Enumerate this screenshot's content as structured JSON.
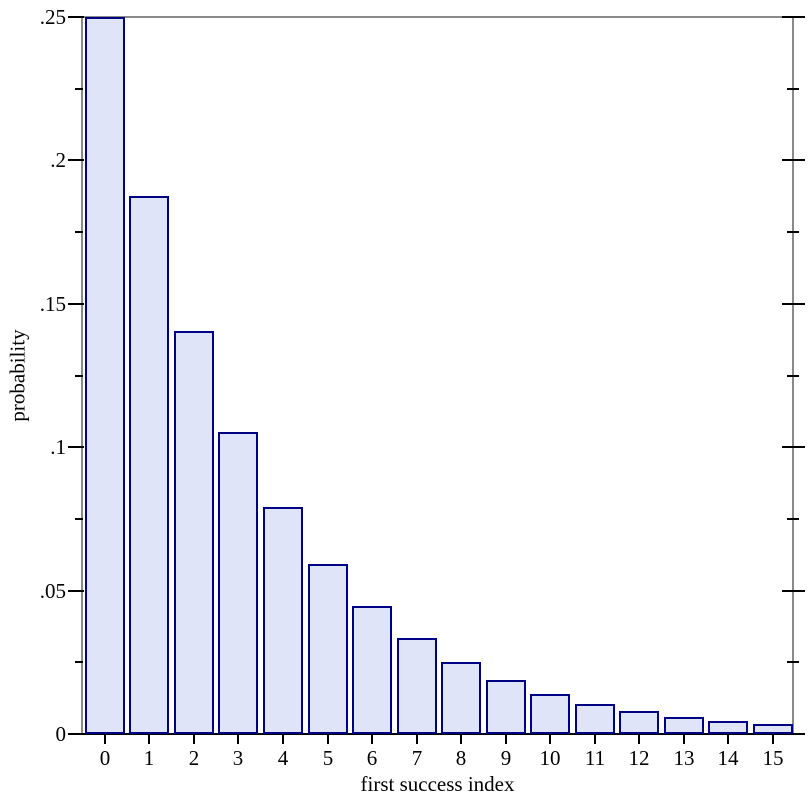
{
  "chart_data": {
    "type": "bar",
    "title": "",
    "xlabel": "first success index",
    "ylabel": "probability",
    "categories": [
      "0",
      "1",
      "2",
      "3",
      "4",
      "5",
      "6",
      "7",
      "8",
      "9",
      "10",
      "11",
      "12",
      "13",
      "14",
      "15"
    ],
    "values": [
      0.25,
      0.1875,
      0.14063,
      0.10547,
      0.0791,
      0.05933,
      0.04449,
      0.03337,
      0.02503,
      0.01877,
      0.01408,
      0.01056,
      0.00792,
      0.00594,
      0.00445,
      0.00334
    ],
    "ylim": [
      0,
      0.25
    ],
    "y_axis": {
      "major_ticks": [
        0,
        0.05,
        0.1,
        0.15,
        0.2,
        0.25
      ],
      "major_tick_labels": [
        "0",
        ".05",
        ".1",
        ".15",
        ".2",
        ".25"
      ],
      "minor_ticks": [
        0.025,
        0.075,
        0.125,
        0.175,
        0.225
      ]
    },
    "grid": false,
    "legend_position": "none",
    "colors": {
      "bar_fill": "#e0e4f8",
      "bar_border": "#000082",
      "frame_line": "#8a8a8a",
      "bottom_axis": "#000000",
      "tick": "#000000",
      "text": "#000000",
      "background": "#ffffff"
    }
  }
}
